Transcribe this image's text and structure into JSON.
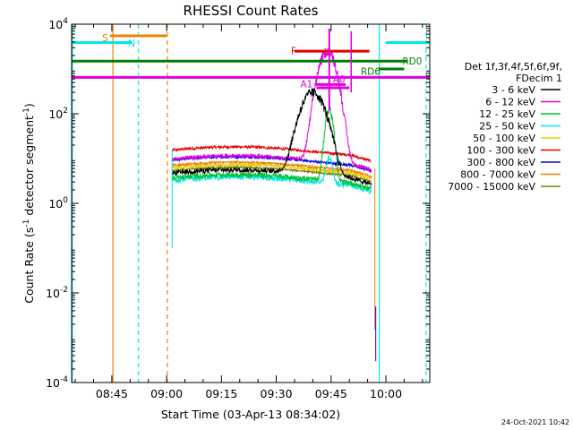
{
  "chart_data": {
    "type": "line",
    "title": "RHESSI Count Rates",
    "xlabel": "Start Time (03-Apr-13 08:34:02)",
    "ylabel": "Count Rate (s",
    "ylabel_sup1": "-1",
    "ylabel_mid": " detector segment",
    "ylabel_sup2": "-1",
    "ylabel_end": ")",
    "y_scale": "log",
    "ylim": [
      0.0001,
      10000
    ],
    "y_ticks": [
      {
        "v": 0.0001,
        "base": "10",
        "exp": "-4"
      },
      {
        "v": 0.01,
        "base": "10",
        "exp": "-2"
      },
      {
        "v": 1,
        "base": "10",
        "exp": "0"
      },
      {
        "v": 100,
        "base": "10",
        "exp": "2"
      },
      {
        "v": 10000,
        "base": "10",
        "exp": "4"
      }
    ],
    "xlim_min": [
      34.0,
      132.0
    ],
    "x_ticks": [
      {
        "label": "08:45",
        "t": 45
      },
      {
        "label": "09:00",
        "t": 60
      },
      {
        "label": "09:15",
        "t": 75
      },
      {
        "label": "09:30",
        "t": 90
      },
      {
        "label": "09:45",
        "t": 105
      },
      {
        "label": "10:00",
        "t": 120
      }
    ],
    "legend_title": [
      "Det 1f,3f,4f,5f,6f,9f,",
      "FDecim 1"
    ],
    "legend_placement": "right",
    "grid": false,
    "series": [
      {
        "name": "3 - 6 keV",
        "color": "#000000",
        "base": 4.6,
        "ripple": 0.12,
        "peak": {
          "t": 100.0,
          "v": 300,
          "w": 3.5
        }
      },
      {
        "name": "6 - 12 keV",
        "color": "#e000e0",
        "base": 9.5,
        "ripple": 0.1,
        "peak": {
          "t": 104.0,
          "v": 2500,
          "w": 2.5
        }
      },
      {
        "name": "12 - 25 keV",
        "color": "#00c030",
        "base": 3.6,
        "ripple": 0.14,
        "peak": {
          "t": 104.5,
          "v": 120,
          "w": 1.2
        }
      },
      {
        "name": "25 - 50 keV",
        "color": "#00e8e8",
        "base": 3.2,
        "ripple": 0.14,
        "peak": {
          "t": 104.5,
          "v": 8,
          "w": 1.0
        }
      },
      {
        "name": "50 - 100 keV",
        "color": "#e0d000",
        "base": 6.0,
        "ripple": 0.06,
        "peak": null
      },
      {
        "name": "100 - 300 keV",
        "color": "#e80000",
        "base": 15.0,
        "ripple": 0.07,
        "peak": null
      },
      {
        "name": "300 - 800 keV",
        "color": "#0000e0",
        "base": 9.0,
        "ripple": 0.07,
        "peak": null
      },
      {
        "name": "800 - 7000 keV",
        "color": "#f08000",
        "base": 6.8,
        "ripple": 0.06,
        "peak": null
      },
      {
        "name": "7000 - 15000 keV",
        "color": "#808000",
        "base": 5.2,
        "ripple": 0.05,
        "peak": null
      }
    ],
    "data_interval_min": [
      61.5,
      116.0
    ],
    "flag_lines": [
      {
        "label": "S",
        "color": "#f08000",
        "t1": 44.5,
        "t2": 60.0,
        "y": 5500,
        "label_t": 44.0,
        "label_y": 5000,
        "label_side": "left"
      },
      {
        "label": "N",
        "color": "#00e8e8",
        "t1": 34.0,
        "t2": 50.5,
        "y": 3900,
        "label_t": 49.5,
        "label_y": 3800,
        "label_side": "right"
      },
      {
        "label": "",
        "color": "#00e8e8",
        "t1": 120.0,
        "t2": 132.0,
        "y": 3900,
        "label_t": 0,
        "label_y": 0,
        "label_side": "none"
      },
      {
        "label": "RD0",
        "color": "#008000",
        "t1": 34.0,
        "t2": 126.0,
        "y": 1500,
        "label_t": 124.5,
        "label_y": 1500,
        "label_side": "right"
      },
      {
        "label": "RD6",
        "color": "#008000",
        "t1": 118.0,
        "t2": 125.0,
        "y": 1000,
        "label_t": 118.5,
        "label_y": 900,
        "label_side": "left"
      },
      {
        "label": "F",
        "color": "#e80000",
        "t1": 95.0,
        "t2": 115.5,
        "y": 2500,
        "label_t": 95.5,
        "label_y": 2600,
        "label_side": "left"
      },
      {
        "label": "",
        "color": "#e000e0",
        "t1": 34.0,
        "t2": 132.0,
        "y": 650,
        "label_t": 0,
        "label_y": 0,
        "label_side": "none"
      },
      {
        "label": "A1",
        "color": "#e000e0",
        "t1": 100.5,
        "t2": 109.0,
        "y": 450,
        "label_t": 100.0,
        "label_y": 470,
        "label_side": "left"
      },
      {
        "label": "A0",
        "color": "#e000e0",
        "t1": 101.0,
        "t2": 110.0,
        "y": 380,
        "label_t": 105.5,
        "label_y": 600,
        "label_side": "right"
      }
    ],
    "vertical_markers": [
      {
        "t": 34.2,
        "color": "#00e8e8",
        "dash": false
      },
      {
        "t": 45.3,
        "color": "#f08000",
        "dash": false
      },
      {
        "t": 52.3,
        "color": "#00e8e8",
        "dash": true
      },
      {
        "t": 60.2,
        "color": "#f08000",
        "dash": true
      },
      {
        "t": 118.2,
        "color": "#00e8e8",
        "dash": false
      },
      {
        "t": 131.0,
        "color": "#00e8e8",
        "dash": true
      }
    ],
    "timestamp": "24-Oct-2021 10:42"
  }
}
